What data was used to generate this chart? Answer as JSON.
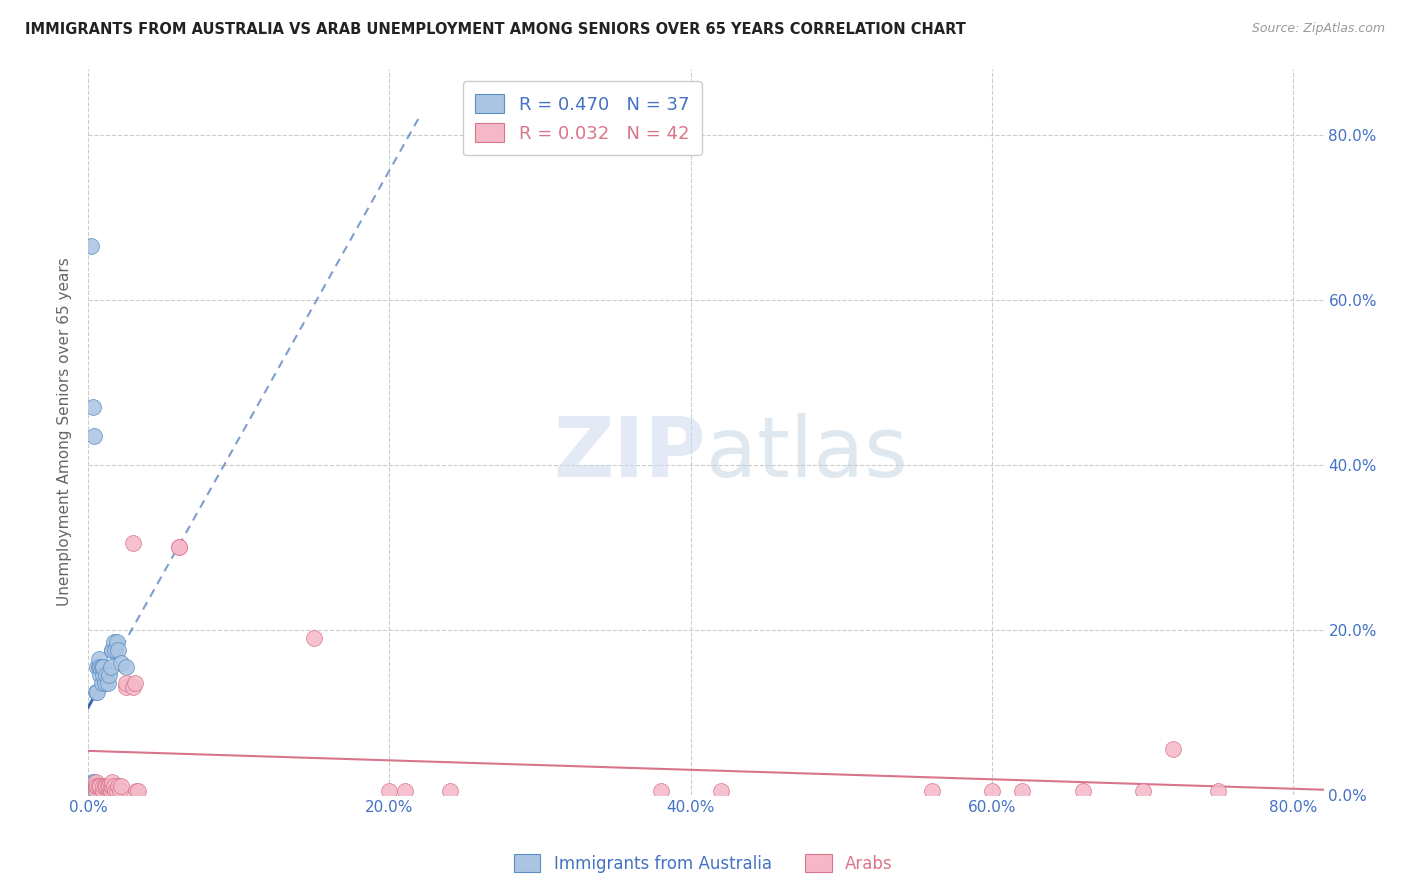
{
  "title": "IMMIGRANTS FROM AUSTRALIA VS ARAB UNEMPLOYMENT AMONG SENIORS OVER 65 YEARS CORRELATION CHART",
  "source": "Source: ZipAtlas.com",
  "ylabel": "Unemployment Among Seniors over 65 years",
  "background_color": "#ffffff",
  "grid_color": "#cccccc",
  "watermark_zip": "ZIP",
  "watermark_atlas": "atlas",
  "xlim": [
    0,
    0.82
  ],
  "ylim": [
    0,
    0.88
  ],
  "x_ticks": [
    0.0,
    0.2,
    0.4,
    0.6,
    0.8
  ],
  "y_ticks": [
    0.0,
    0.2,
    0.4,
    0.6,
    0.8
  ],
  "blue_series": {
    "label": "Immigrants from Australia",
    "R": 0.47,
    "N": 37,
    "color": "#aac4e2",
    "edge_color": "#5b8ec4",
    "line_color": "#3a6ab5",
    "x": [
      0.001,
      0.001,
      0.002,
      0.002,
      0.003,
      0.003,
      0.003,
      0.004,
      0.004,
      0.004,
      0.005,
      0.005,
      0.005,
      0.006,
      0.006,
      0.006,
      0.007,
      0.007,
      0.008,
      0.008,
      0.009,
      0.009,
      0.01,
      0.01,
      0.011,
      0.012,
      0.013,
      0.014,
      0.015,
      0.016,
      0.016,
      0.017,
      0.018,
      0.019,
      0.02,
      0.022,
      0.025
    ],
    "y": [
      0.005,
      0.01,
      0.005,
      0.01,
      0.005,
      0.01,
      0.015,
      0.005,
      0.01,
      0.015,
      0.005,
      0.01,
      0.125,
      0.005,
      0.125,
      0.155,
      0.155,
      0.165,
      0.145,
      0.155,
      0.135,
      0.155,
      0.145,
      0.155,
      0.135,
      0.145,
      0.135,
      0.145,
      0.155,
      0.175,
      0.175,
      0.185,
      0.175,
      0.185,
      0.175,
      0.16,
      0.155
    ]
  },
  "pink_series": {
    "label": "Arabs",
    "R": 0.032,
    "N": 42,
    "color": "#f5b8c8",
    "edge_color": "#d9758a",
    "line_color": "#d9758a",
    "x": [
      0.005,
      0.005,
      0.005,
      0.006,
      0.007,
      0.008,
      0.01,
      0.01,
      0.011,
      0.012,
      0.013,
      0.014,
      0.015,
      0.015,
      0.016,
      0.016,
      0.017,
      0.018,
      0.019,
      0.02,
      0.021,
      0.022,
      0.025,
      0.025,
      0.03,
      0.031,
      0.032,
      0.033,
      0.06,
      0.15,
      0.2,
      0.21,
      0.24,
      0.38,
      0.42,
      0.56,
      0.6,
      0.62,
      0.66,
      0.7,
      0.72,
      0.75
    ],
    "y": [
      0.005,
      0.01,
      0.015,
      0.01,
      0.01,
      0.01,
      0.005,
      0.01,
      0.01,
      0.01,
      0.01,
      0.01,
      0.005,
      0.01,
      0.01,
      0.015,
      0.01,
      0.005,
      0.005,
      0.01,
      0.005,
      0.01,
      0.13,
      0.135,
      0.13,
      0.135,
      0.005,
      0.005,
      0.3,
      0.19,
      0.005,
      0.005,
      0.005,
      0.005,
      0.005,
      0.005,
      0.005,
      0.005,
      0.005,
      0.005,
      0.055,
      0.005
    ]
  },
  "blue_outliers": {
    "x": [
      0.002,
      0.003,
      0.004
    ],
    "y": [
      0.665,
      0.47,
      0.435
    ]
  },
  "pink_outliers": {
    "x": [
      0.03,
      0.06
    ],
    "y": [
      0.305,
      0.3
    ]
  }
}
